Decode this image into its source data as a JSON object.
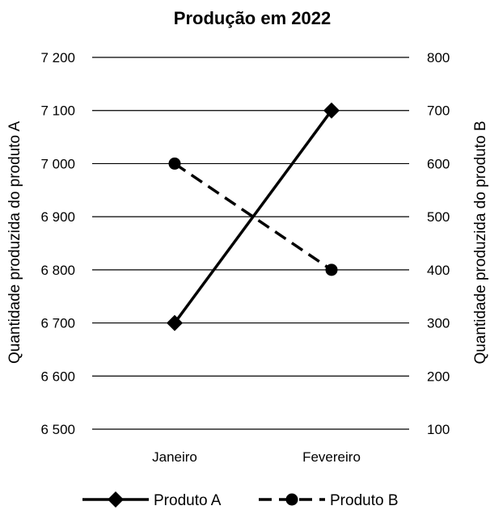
{
  "chart_data": {
    "type": "line",
    "title": "Produção em 2022",
    "categories": [
      "Janeiro",
      "Fevereiro"
    ],
    "y_left": {
      "label": "Quantidade produzida do produto A",
      "ylim": [
        6500,
        7200
      ],
      "ticks": [
        6500,
        6600,
        6700,
        6800,
        6900,
        7000,
        7100,
        7200
      ],
      "tick_labels": [
        "6 500",
        "6 600",
        "6 700",
        "6 800",
        "6 900",
        "7 000",
        "7 100",
        "7 200"
      ]
    },
    "y_right": {
      "label": "Quantidade produzida do produto B",
      "ylim": [
        100,
        800
      ],
      "ticks": [
        100,
        200,
        300,
        400,
        500,
        600,
        700,
        800
      ],
      "tick_labels": [
        "100",
        "200",
        "300",
        "400",
        "500",
        "600",
        "700",
        "800"
      ]
    },
    "series": [
      {
        "name": "Produto A",
        "axis": "left",
        "values": [
          6700,
          7100
        ],
        "line_style": "solid",
        "marker": "diamond",
        "color": "#000000"
      },
      {
        "name": "Produto B",
        "axis": "right",
        "values": [
          600,
          400
        ],
        "line_style": "dashed",
        "marker": "circle",
        "color": "#000000"
      }
    ],
    "grid": true,
    "legend_position": "bottom"
  }
}
